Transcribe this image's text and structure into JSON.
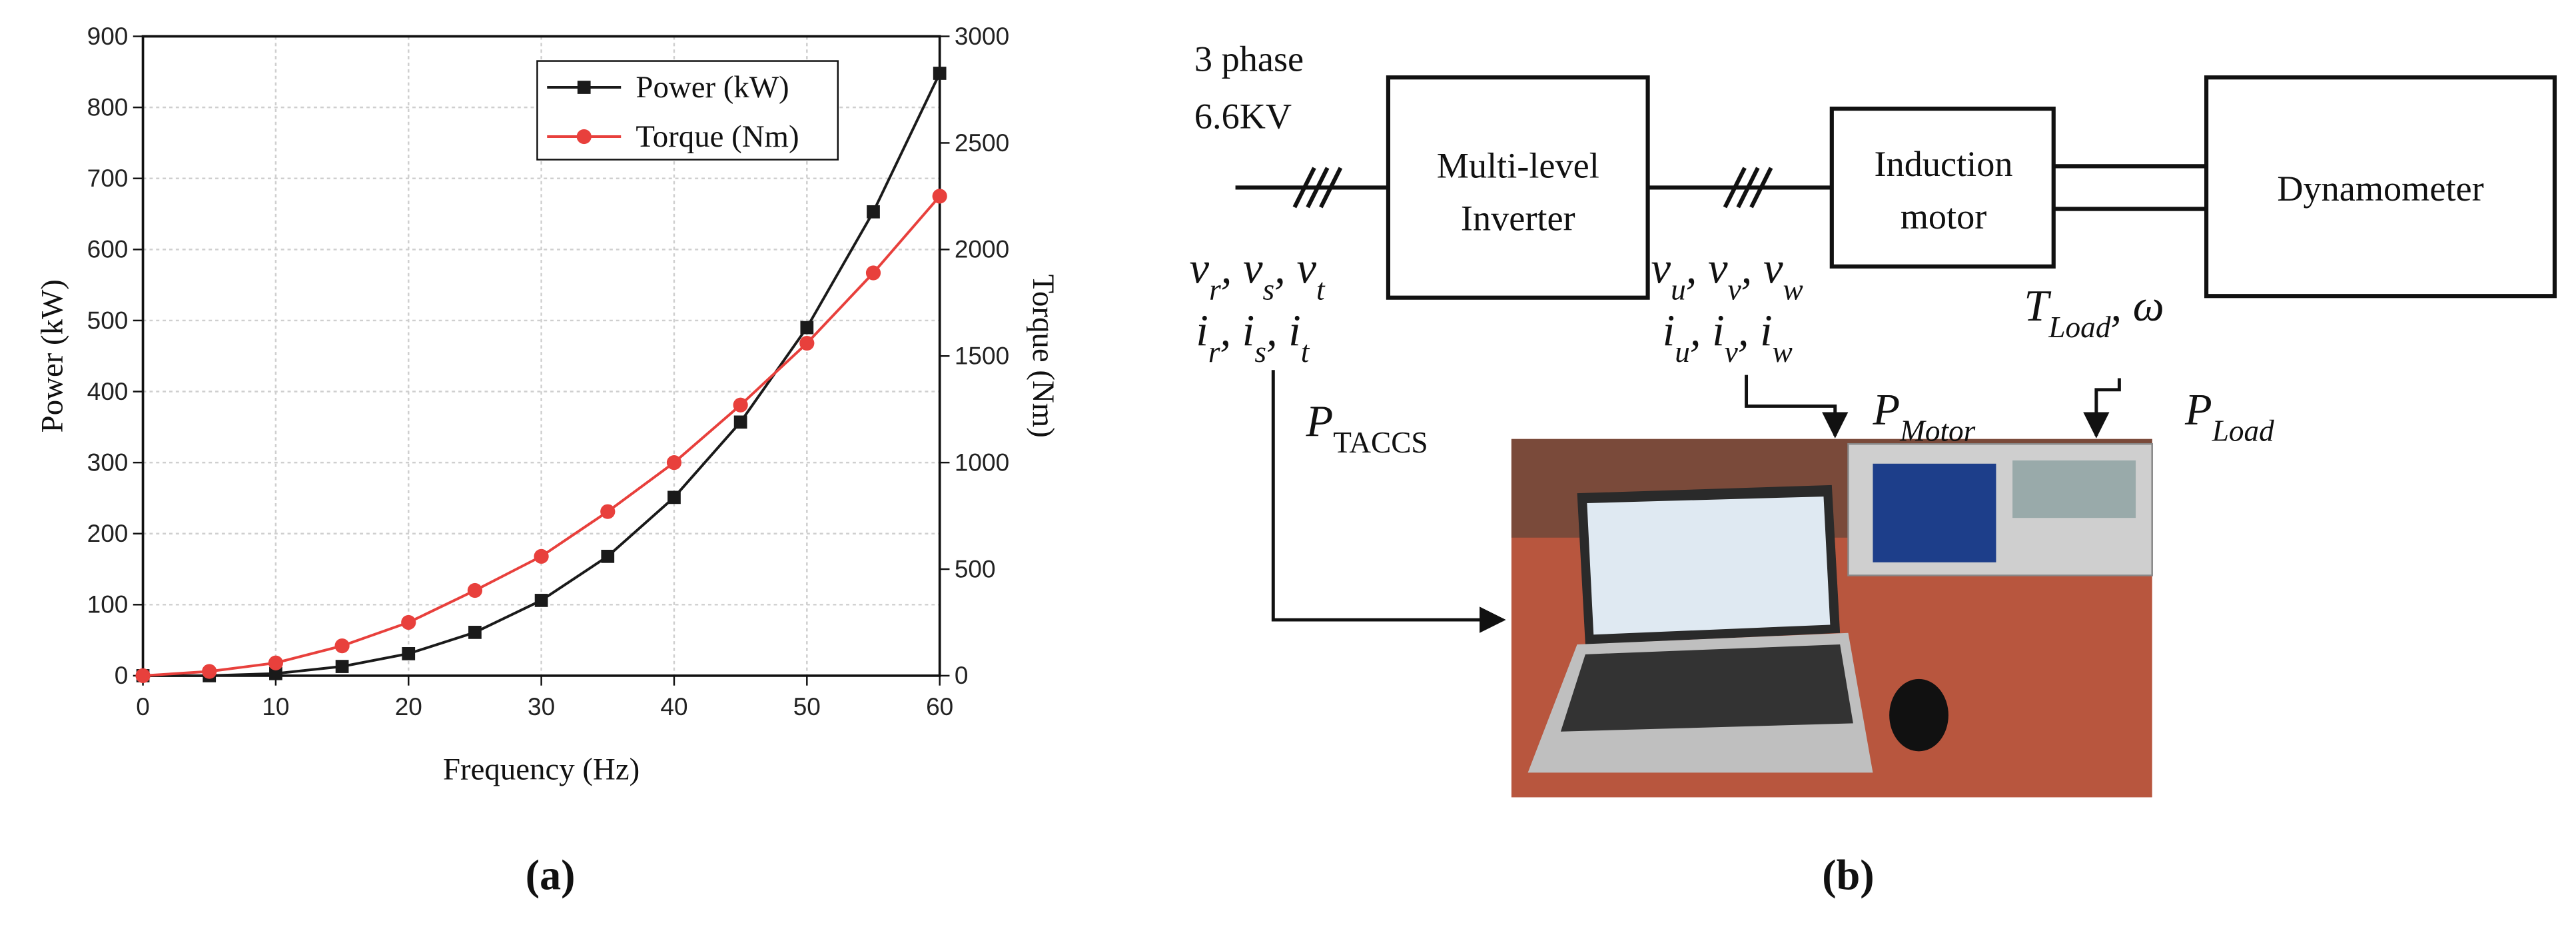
{
  "chart_data": {
    "type": "line",
    "x": [
      0,
      5,
      10,
      15,
      20,
      25,
      30,
      35,
      40,
      45,
      50,
      55,
      60
    ],
    "xlim": [
      0,
      60
    ],
    "xticks": [
      0,
      10,
      20,
      30,
      40,
      50,
      60
    ],
    "ylim": [
      0,
      900
    ],
    "yticks": [
      0,
      100,
      200,
      300,
      400,
      500,
      600,
      700,
      800,
      900
    ],
    "y2lim": [
      0,
      3000
    ],
    "y2ticks": [
      0,
      500,
      1000,
      1500,
      2000,
      2500,
      3000
    ],
    "xlabel": "Frequency (Hz)",
    "ylabel": "Power (kW)",
    "y2label": "Torque (Nm)",
    "grid": true,
    "legend": "upper-right",
    "series": [
      {
        "name": "Power (kW)",
        "color": "#1a1a1a",
        "marker": "square",
        "values": [
          0,
          0,
          3,
          13,
          31,
          61,
          106,
          168,
          251,
          357,
          490,
          653,
          848
        ]
      },
      {
        "name": "Torque (Nm)",
        "color": "#e8403c",
        "marker": "circle",
        "axis": "y2",
        "values": [
          0,
          20,
          60,
          140,
          250,
          400,
          560,
          770,
          1000,
          1270,
          1560,
          1890,
          2250
        ]
      }
    ],
    "caption": "(a)"
  },
  "diagram": {
    "caption": "(b)",
    "supply": [
      "3 phase",
      "6.6KV"
    ],
    "blocks": [
      {
        "lines": [
          "Multi-level",
          "Inverter"
        ]
      },
      {
        "lines": [
          "Induction",
          "motor"
        ]
      },
      {
        "lines": [
          "Dynamometer"
        ]
      }
    ],
    "labels": [
      [
        {
          "text": "v",
          "sub": "r"
        },
        {
          "text": ", v",
          "sub": "s"
        },
        {
          "text": ", v",
          "sub": "t"
        }
      ],
      [
        {
          "text": "i",
          "sub": "r"
        },
        {
          "text": ", i",
          "sub": "s"
        },
        {
          "text": ", i",
          "sub": "t"
        }
      ],
      [
        {
          "text": "v",
          "sub": "u"
        },
        {
          "text": ", v",
          "sub": "v"
        },
        {
          "text": ", v",
          "sub": "w"
        }
      ],
      [
        {
          "text": "i",
          "sub": "u"
        },
        {
          "text": ", i",
          "sub": "v"
        },
        {
          "text": ", i",
          "sub": "w"
        }
      ],
      [
        {
          "text": "T",
          "sub": "Load"
        },
        {
          "text": ", ω"
        }
      ],
      [
        {
          "text": "P",
          "sub": "TACCS"
        }
      ],
      [
        {
          "text": "P",
          "sub": "Motor"
        }
      ],
      [
        {
          "text": "P",
          "sub": "Load"
        }
      ]
    ]
  }
}
